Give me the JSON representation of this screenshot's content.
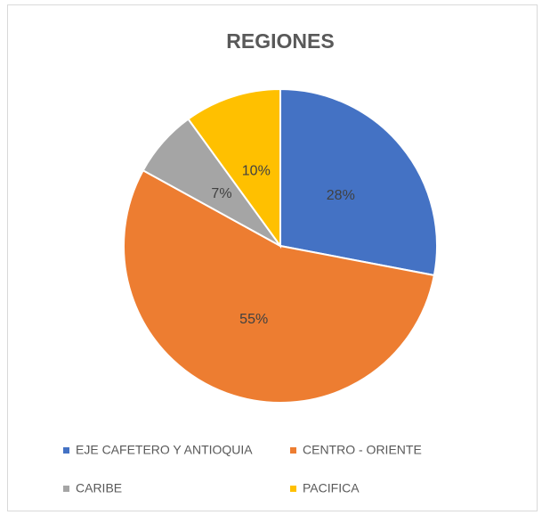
{
  "chart_data": {
    "type": "pie",
    "title": "REGIONES",
    "categories": [
      "EJE CAFETERO Y ANTIOQUIA",
      "CENTRO - ORIENTE",
      "CARIBE",
      "PACIFICA"
    ],
    "values": [
      28,
      55,
      7,
      10
    ],
    "value_labels": [
      "28%",
      "55%",
      "7%",
      "10%"
    ],
    "colors": [
      "#4472c4",
      "#ed7d31",
      "#a5a5a5",
      "#ffc000"
    ]
  }
}
